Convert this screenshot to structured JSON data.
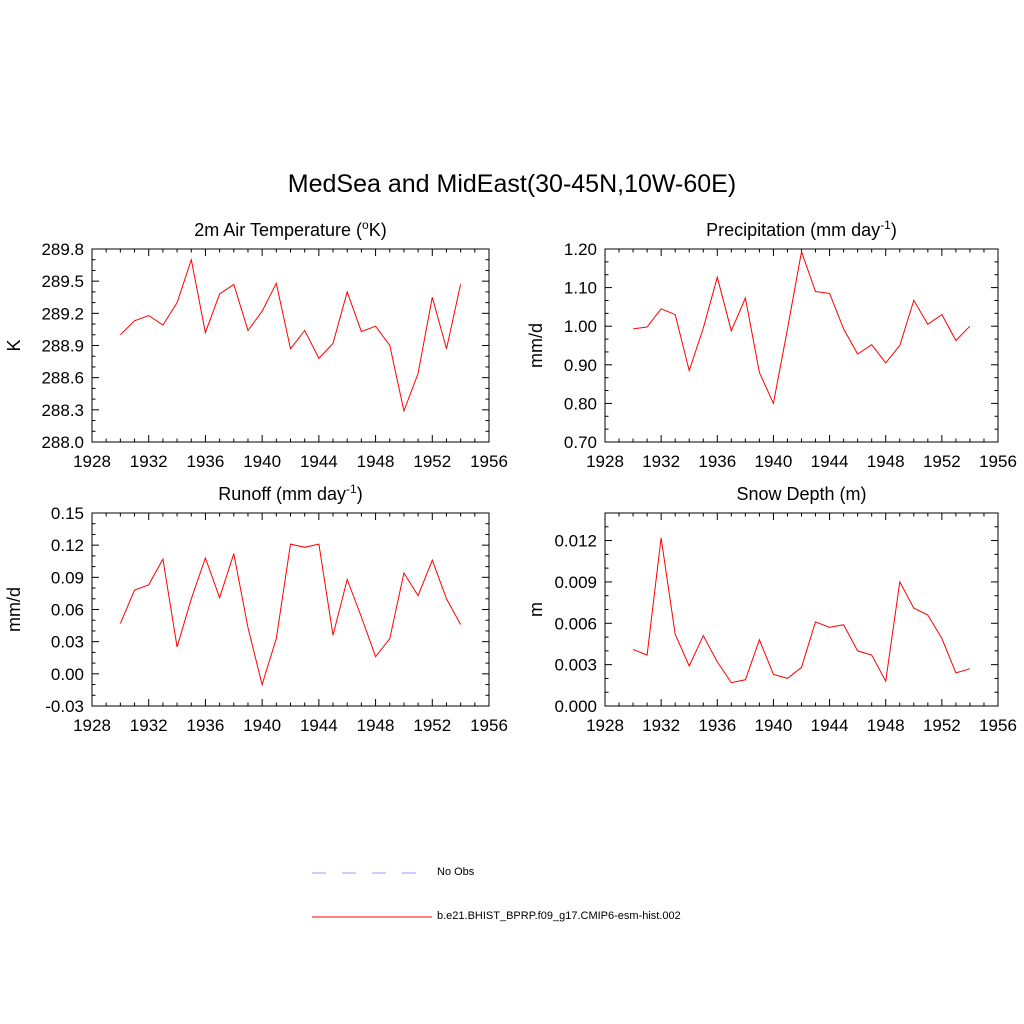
{
  "figure": {
    "title": "MedSea and MidEast(30-45N,10W-60E)"
  },
  "colors": {
    "model_line": "#ff0000",
    "obs_line": "#9999ff",
    "axis": "#000000"
  },
  "legend": {
    "obs_label": "No Obs",
    "model_label": "b.e21.BHIST_BPRP.f09_g17.CMIP6-esm-hist.002"
  },
  "chart_data": [
    {
      "type": "line",
      "title": "2m Air Temperature",
      "title_unit_pre": " (",
      "title_unit_sup": "o",
      "title_unit_post": "K)",
      "ylabel": "K",
      "xlim": [
        1928,
        1956
      ],
      "ylim": [
        288.0,
        289.8
      ],
      "xticks": [
        1928,
        1932,
        1936,
        1940,
        1944,
        1948,
        1952,
        1956
      ],
      "yticks": [
        "288.0",
        "288.3",
        "288.6",
        "288.9",
        "289.2",
        "289.5",
        "289.8"
      ],
      "x": [
        1930,
        1931,
        1932,
        1933,
        1934,
        1935,
        1936,
        1937,
        1938,
        1939,
        1940,
        1941,
        1942,
        1943,
        1944,
        1945,
        1946,
        1947,
        1948,
        1949,
        1950,
        1951,
        1952,
        1953,
        1954
      ],
      "series": [
        {
          "name": "b.e21.BHIST_BPRP.f09_g17.CMIP6-esm-hist.002",
          "values": [
            289.0,
            289.13,
            289.18,
            289.09,
            289.3,
            289.7,
            289.02,
            289.38,
            289.47,
            289.04,
            289.22,
            289.48,
            288.87,
            289.04,
            288.78,
            288.92,
            289.4,
            289.03,
            289.08,
            288.9,
            288.29,
            288.64,
            289.35,
            288.87,
            289.47
          ]
        }
      ],
      "grid": false
    },
    {
      "type": "line",
      "title": "Precipitation",
      "title_unit_pre": " (mm day",
      "title_unit_sup": "-1",
      "title_unit_post": ")",
      "ylabel": "mm/d",
      "xlim": [
        1928,
        1956
      ],
      "ylim": [
        0.7,
        1.2
      ],
      "xticks": [
        1928,
        1932,
        1936,
        1940,
        1944,
        1948,
        1952,
        1956
      ],
      "yticks": [
        "0.70",
        "0.80",
        "0.90",
        "1.00",
        "1.10",
        "1.20"
      ],
      "x": [
        1930,
        1931,
        1932,
        1933,
        1934,
        1935,
        1936,
        1937,
        1938,
        1939,
        1940,
        1941,
        1942,
        1943,
        1944,
        1945,
        1946,
        1947,
        1948,
        1949,
        1950,
        1951,
        1952,
        1953,
        1954
      ],
      "series": [
        {
          "name": "b.e21.BHIST_BPRP.f09_g17.CMIP6-esm-hist.002",
          "values": [
            0.993,
            0.998,
            1.045,
            1.03,
            0.885,
            0.995,
            1.127,
            0.988,
            1.073,
            0.88,
            0.8,
            0.993,
            1.193,
            1.09,
            1.085,
            0.993,
            0.928,
            0.952,
            0.905,
            0.95,
            1.067,
            1.005,
            1.03,
            0.963,
            1.0
          ]
        }
      ],
      "grid": false
    },
    {
      "type": "line",
      "title": "Runoff",
      "title_unit_pre": " (mm day",
      "title_unit_sup": "-1",
      "title_unit_post": ")",
      "ylabel": "mm/d",
      "xlim": [
        1928,
        1956
      ],
      "ylim": [
        -0.03,
        0.15
      ],
      "xticks": [
        1928,
        1932,
        1936,
        1940,
        1944,
        1948,
        1952,
        1956
      ],
      "yticks": [
        "-0.03",
        "0.00",
        "0.03",
        "0.06",
        "0.09",
        "0.12",
        "0.15"
      ],
      "x": [
        1930,
        1931,
        1932,
        1933,
        1934,
        1935,
        1936,
        1937,
        1938,
        1939,
        1940,
        1941,
        1942,
        1943,
        1944,
        1945,
        1946,
        1947,
        1948,
        1949,
        1950,
        1951,
        1952,
        1953,
        1954
      ],
      "series": [
        {
          "name": "b.e21.BHIST_BPRP.f09_g17.CMIP6-esm-hist.002",
          "values": [
            0.047,
            0.078,
            0.083,
            0.107,
            0.025,
            0.07,
            0.108,
            0.071,
            0.112,
            0.043,
            -0.01,
            0.033,
            0.121,
            0.118,
            0.121,
            0.036,
            0.088,
            0.053,
            0.016,
            0.033,
            0.094,
            0.073,
            0.106,
            0.07,
            0.046
          ]
        }
      ],
      "grid": false
    },
    {
      "type": "line",
      "title": "Snow Depth (m)",
      "title_unit_pre": "",
      "title_unit_sup": "",
      "title_unit_post": "",
      "ylabel": "m",
      "xlim": [
        1928,
        1956
      ],
      "ylim": [
        0.0,
        0.014
      ],
      "xticks": [
        1928,
        1932,
        1936,
        1940,
        1944,
        1948,
        1952,
        1956
      ],
      "yticks": [
        "0.000",
        "0.003",
        "0.006",
        "0.009",
        "0.012"
      ],
      "x": [
        1930,
        1931,
        1932,
        1933,
        1934,
        1935,
        1936,
        1937,
        1938,
        1939,
        1940,
        1941,
        1942,
        1943,
        1944,
        1945,
        1946,
        1947,
        1948,
        1949,
        1950,
        1951,
        1952,
        1953,
        1954
      ],
      "series": [
        {
          "name": "b.e21.BHIST_BPRP.f09_g17.CMIP6-esm-hist.002",
          "values": [
            0.0041,
            0.0037,
            0.0122,
            0.0052,
            0.0029,
            0.0051,
            0.0032,
            0.0017,
            0.0019,
            0.0048,
            0.0023,
            0.002,
            0.0028,
            0.0061,
            0.0057,
            0.0059,
            0.004,
            0.0037,
            0.0018,
            0.009,
            0.0071,
            0.0066,
            0.0049,
            0.0024,
            0.0027
          ]
        }
      ],
      "grid": false
    }
  ]
}
